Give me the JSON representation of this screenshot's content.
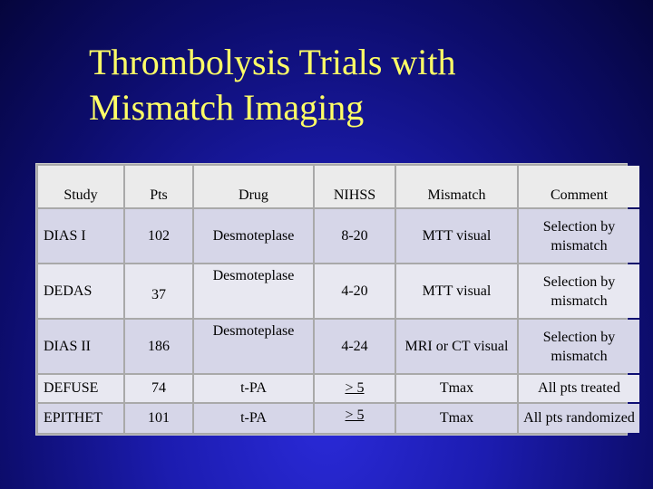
{
  "slide": {
    "title_line1": "Thrombolysis Trials with",
    "title_line2": "Mismatch Imaging"
  },
  "table": {
    "headers": [
      "Study",
      "Pts",
      "Drug",
      "NIHSS",
      "Mismatch",
      "Comment"
    ],
    "rows": [
      [
        "DIAS I",
        "102",
        "Desmoteplase",
        "8-20",
        "MTT visual",
        "Selection by mismatch"
      ],
      [
        "DEDAS",
        "37",
        "Desmoteplase",
        "4-20",
        "MTT visual",
        "Selection by mismatch"
      ],
      [
        "DIAS II",
        "186",
        "Desmoteplase",
        "4-24",
        "MRI or CT visual",
        "Selection by mismatch"
      ],
      [
        "DEFUSE",
        "74",
        "t-PA",
        "> 5",
        "Tmax",
        "All pts treated"
      ],
      [
        "EPITHET",
        "101",
        "t-PA",
        "> 5",
        "Tmax",
        "All pts randomized"
      ]
    ]
  },
  "colors": {
    "title": "#ffff66",
    "background": "#1c1cb0",
    "header_row": "#ebebeb",
    "row_odd": "#d6d6e8",
    "row_even": "#e8e8f1"
  }
}
